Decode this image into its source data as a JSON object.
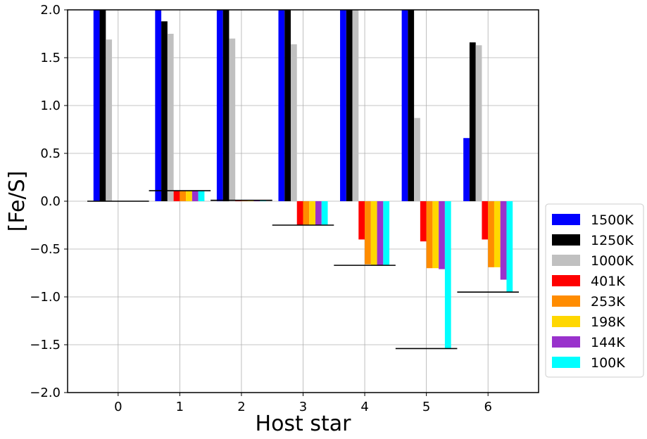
{
  "chart_data": {
    "type": "bar",
    "title": "",
    "xlabel": "Host star",
    "ylabel": "[Fe/S]",
    "categories": [
      "0",
      "1",
      "2",
      "3",
      "4",
      "5",
      "6"
    ],
    "ylim": [
      -2.0,
      2.0
    ],
    "yticks": [
      "−2.0",
      "−1.5",
      "−1.0",
      "−0.5",
      "0.0",
      "0.5",
      "1.0",
      "1.5",
      "2.0"
    ],
    "ytick_values": [
      -2.0,
      -1.5,
      -1.0,
      -0.5,
      0.0,
      0.5,
      1.0,
      1.5,
      2.0
    ],
    "grid": true,
    "legend_position": "right",
    "series": [
      {
        "name": "1500K",
        "color": "#0000ff",
        "values": [
          2.0,
          2.0,
          2.0,
          2.0,
          2.0,
          2.0,
          0.66
        ]
      },
      {
        "name": "1250K",
        "color": "#000000",
        "values": [
          2.0,
          1.88,
          2.0,
          2.0,
          2.0,
          2.0,
          1.66
        ]
      },
      {
        "name": "1000K",
        "color": "#c0c0c0",
        "values": [
          1.69,
          1.75,
          1.7,
          1.64,
          2.0,
          0.87,
          1.63
        ]
      },
      {
        "name": "401K",
        "color": "#ff0000",
        "values": [
          0.0,
          0.11,
          0.01,
          -0.25,
          -0.4,
          -0.42,
          -0.4
        ]
      },
      {
        "name": "253K",
        "color": "#ff8c00",
        "values": [
          0.0,
          0.11,
          0.01,
          -0.25,
          -0.66,
          -0.7,
          -0.69
        ]
      },
      {
        "name": "198K",
        "color": "#ffd700",
        "values": [
          0.0,
          0.11,
          0.01,
          -0.25,
          -0.67,
          -0.7,
          -0.69
        ]
      },
      {
        "name": "144K",
        "color": "#9932cc",
        "values": [
          0.0,
          0.11,
          0.01,
          -0.25,
          -0.67,
          -0.71,
          -0.82
        ]
      },
      {
        "name": "100K",
        "color": "#00ffff",
        "values": [
          0.0,
          0.11,
          0.01,
          -0.25,
          -0.67,
          -1.54,
          -0.95
        ]
      }
    ],
    "reference_lines": [
      0.0,
      0.11,
      0.01,
      -0.25,
      -0.67,
      -1.54,
      -0.95
    ]
  }
}
